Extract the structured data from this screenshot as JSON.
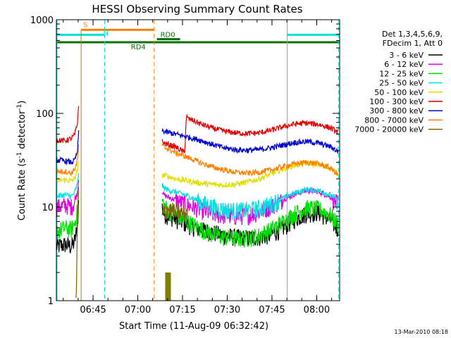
{
  "chart_data": {
    "type": "line",
    "title": "HESSI Observing Summary Count Rates",
    "xlabel": "Start Time (11-Aug-09 06:32:42)",
    "ylabel_main": "Count Rate (s",
    "ylabel_sup": "-1",
    "ylabel_mid": " detector",
    "ylabel_sup2": "-1",
    "ylabel_end": ")",
    "yscale": "log",
    "ylim": [
      1,
      1000
    ],
    "xlim_minutes": [
      0,
      95
    ],
    "y_ticks": [
      "1",
      "10",
      "100",
      "1000"
    ],
    "x_ticks": [
      {
        "label": "06:45",
        "min": 12.3
      },
      {
        "label": "07:00",
        "min": 27.3
      },
      {
        "label": "07:15",
        "min": 42.3
      },
      {
        "label": "07:30",
        "min": 57.3
      },
      {
        "label": "07:45",
        "min": 72.3
      },
      {
        "label": "08:00",
        "min": 87.3
      }
    ],
    "legend_header": [
      "Det 1,3,4,5,6,9,",
      "FDecim 1, Att 0"
    ],
    "legend_placement": "right",
    "series": [
      {
        "name": "3 - 6 keV",
        "color": "#000000",
        "segments": [
          {
            "x": [
              0,
              3,
              5,
              6,
              7,
              7.5
            ],
            "y": [
              3.8,
              4.0,
              3.8,
              4.2,
              6,
              12
            ]
          },
          {
            "x": [
              35.5,
              36,
              38,
              40,
              44,
              48,
              52,
              56,
              60,
              64,
              68,
              72,
              76,
              80,
              84,
              88,
              92,
              94.5
            ],
            "y": [
              10,
              8.5,
              8,
              7.5,
              6.5,
              5.8,
              5.4,
              5.0,
              4.8,
              4.7,
              4.8,
              5.1,
              6.0,
              7.5,
              8.6,
              8.8,
              7.2,
              5.8
            ]
          }
        ]
      },
      {
        "name": "6 - 12 keV",
        "color": "#e000e0",
        "segments": [
          {
            "x": [
              0,
              3,
              5,
              6,
              7,
              7.5
            ],
            "y": [
              10,
              10.5,
              10.2,
              11,
              14,
              20
            ]
          },
          {
            "x": [
              35.5,
              36,
              38,
              40,
              44,
              48,
              52,
              56,
              60,
              64,
              68,
              72,
              76,
              80,
              84,
              88,
              92,
              94.5
            ],
            "y": [
              15,
              13.5,
              12.5,
              12.0,
              10.5,
              9.5,
              8.5,
              8.2,
              8.0,
              8.2,
              8.8,
              10.2,
              12.0,
              13.8,
              15.0,
              14.6,
              12.8,
              10.6
            ]
          }
        ]
      },
      {
        "name": "12 - 25 keV",
        "color": "#00e000",
        "segments": [
          {
            "x": [
              0,
              3,
              5,
              6,
              7,
              7.5
            ],
            "y": [
              5.5,
              6.0,
              5.8,
              6.5,
              9,
              14
            ]
          },
          {
            "x": [
              35.5,
              36,
              38,
              40,
              44,
              48,
              52,
              56,
              60,
              64,
              68,
              72,
              76,
              80,
              84,
              88,
              92,
              94.5
            ],
            "y": [
              12,
              10.5,
              9.0,
              8.2,
              7.0,
              6.0,
              5.2,
              4.8,
              4.6,
              4.7,
              5.0,
              5.8,
              7.0,
              8.6,
              9.8,
              9.6,
              8.2,
              6.6
            ]
          }
        ]
      },
      {
        "name": "25 - 50 keV",
        "color": "#00e0e0",
        "segments": [
          {
            "x": [
              0,
              3,
              5,
              6,
              7,
              7.5
            ],
            "y": [
              13,
              13.5,
              13.0,
              14,
              17,
              24
            ]
          },
          {
            "x": [
              35.5,
              36,
              38,
              40,
              44,
              48,
              52,
              56,
              60,
              64,
              68,
              72,
              76,
              80,
              84,
              88,
              92,
              94.5
            ],
            "y": [
              17,
              16,
              15,
              14.5,
              13.2,
              11.5,
              10.2,
              9.5,
              9.2,
              9.3,
              9.8,
              10.8,
              12.5,
              14.2,
              15.4,
              15.0,
              13.4,
              11.6
            ]
          }
        ]
      },
      {
        "name": "50 - 100 keV",
        "color": "#e0e000",
        "segments": [
          {
            "x": [
              0,
              3,
              5,
              6,
              7,
              7.5
            ],
            "y": [
              19,
              19.5,
              19.0,
              20,
              24,
              30
            ]
          },
          {
            "x": [
              35.5,
              36,
              38,
              40,
              44,
              48,
              52,
              56,
              60,
              64,
              68,
              72,
              76,
              80,
              84,
              88,
              92,
              94.5
            ],
            "y": [
              22,
              22,
              21,
              20,
              19,
              18,
              17.5,
              17.2,
              17.5,
              18.5,
              20,
              22.5,
              25.5,
              28,
              29.5,
              28.5,
              26,
              22.5
            ]
          }
        ]
      },
      {
        "name": "100 - 300 keV",
        "color": "#e00000",
        "segments": [
          {
            "x": [
              0,
              3,
              5,
              6,
              7,
              7.5
            ],
            "y": [
              52,
              51,
              54,
              58,
              75,
              128
            ]
          },
          {
            "x": [
              35.5,
              36,
              38,
              40,
              42,
              43,
              43.6,
              44,
              46,
              48,
              52,
              56,
              60,
              64,
              68,
              72,
              76,
              80,
              84,
              88,
              92,
              94.5
            ],
            "y": [
              50,
              48,
              46,
              44,
              40,
              38,
              95,
              88,
              84,
              78,
              70,
              65,
              62,
              61,
              62,
              66,
              72,
              77,
              79,
              76,
              70,
              62
            ]
          }
        ]
      },
      {
        "name": "300 - 800 keV",
        "color": "#0000d0",
        "segments": [
          {
            "x": [
              0,
              3,
              5,
              6,
              7,
              7.5
            ],
            "y": [
              32,
              31,
              30,
              31,
              38,
              62
            ]
          },
          {
            "x": [
              35.5,
              36,
              38,
              40,
              42,
              44,
              46,
              48,
              52,
              56,
              60,
              64,
              68,
              72,
              76,
              80,
              84,
              88,
              92,
              94.5
            ],
            "y": [
              66,
              64,
              62,
              60,
              58,
              56,
              54,
              52,
              47,
              43,
              41,
              40.5,
              41,
              43,
              46,
              49,
              50,
              48,
              44,
              39
            ]
          }
        ]
      },
      {
        "name": "800 - 7000 keV",
        "color": "#ff8000",
        "segments": [
          {
            "x": [
              0,
              3,
              5,
              6,
              7,
              7.5
            ],
            "y": [
              24,
              24,
              23,
              25,
              30,
              45
            ]
          },
          {
            "x": [
              35.5,
              36,
              38,
              40,
              42,
              44,
              46,
              48,
              52,
              56,
              60,
              64,
              68,
              72,
              76,
              80,
              84,
              88,
              92,
              94.5
            ],
            "y": [
              46,
              44,
              41,
              38,
              36,
              34,
              32,
              30,
              27,
              25,
              23.5,
              23,
              23.5,
              25,
              27,
              29,
              30,
              29,
              26,
              22
            ]
          }
        ]
      },
      {
        "name": "7000 - 20000 keV",
        "color": "#806000",
        "segments": [
          {
            "x": [
              6.6,
              6.8,
              7.2,
              7.4
            ],
            "y": [
              1,
              2.0,
              10,
              16
            ]
          },
          {
            "x": [
              35.5,
              36,
              37,
              40,
              44
            ],
            "y": [
              8,
              9,
              9.5,
              9,
              8.5
            ]
          }
        ]
      }
    ],
    "flare_bar": {
      "color": "#808000",
      "x_start": 36.5,
      "x_end": 38.4,
      "y": 2.0
    },
    "attenuator_lines": {
      "color": "#b08000",
      "x": [
        8.3
      ]
    },
    "orbit_bars": [
      {
        "label": "S",
        "color": "#ff8000",
        "x_start": 8.3,
        "x_end": 32.8,
        "y": 780
      },
      {
        "label": "N",
        "color": "#00e0e0",
        "x_start": 0,
        "x_end": 16.2,
        "y": 690
      },
      {
        "label": "",
        "color": "#00e0e0",
        "x_start": 77.4,
        "x_end": 95,
        "y": 690
      },
      {
        "label": "RD0",
        "color": "#007000",
        "x_start": 33.7,
        "x_end": 41.5,
        "y": 620
      },
      {
        "label": "RD4",
        "color": "#007000",
        "x_start": 0,
        "x_end": 95,
        "y": 575
      }
    ],
    "vertical_markers": [
      {
        "x": 0.2,
        "color": "#00e0e0",
        "style": "solid"
      },
      {
        "x": 16.2,
        "color": "#00e0e0",
        "style": "dashed"
      },
      {
        "x": 32.8,
        "color": "#ff8000",
        "style": "dashed"
      },
      {
        "x": 77.4,
        "color": "#00e0e0",
        "style": "solid"
      },
      {
        "x": 94.6,
        "color": "#00e0e0",
        "style": "dashed"
      }
    ]
  },
  "footer": {
    "timestamp": "13-Mar-2010 08:18"
  }
}
